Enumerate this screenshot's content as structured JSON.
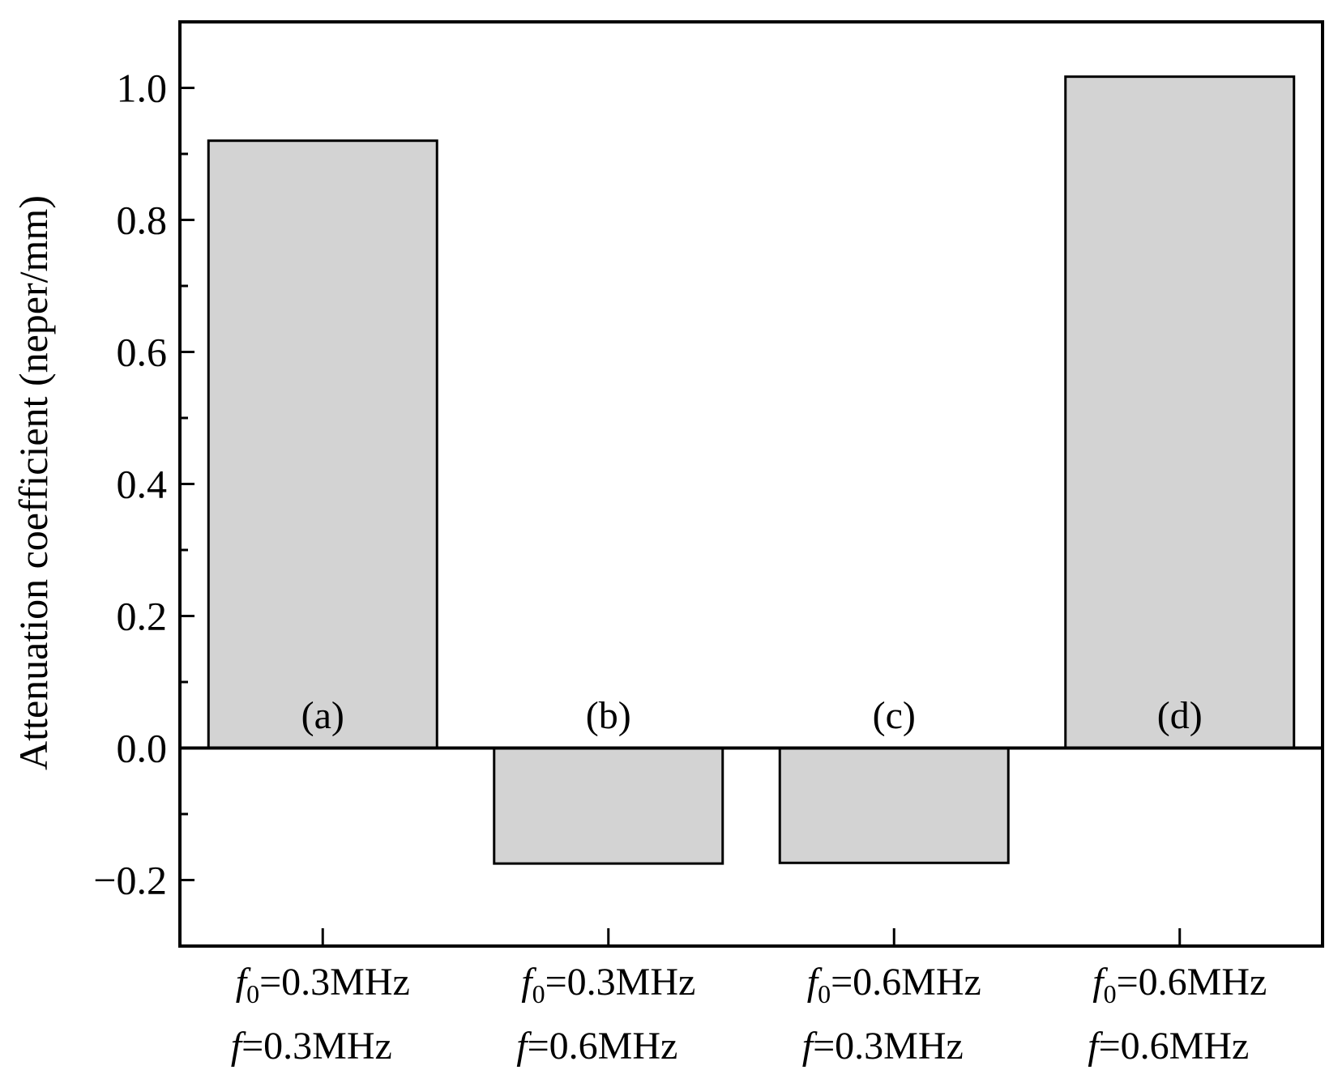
{
  "chart_data": {
    "type": "bar",
    "title": "",
    "xlabel": "",
    "ylabel": "Attenuation coefficient (neper/mm)",
    "ylim": [
      -0.3,
      1.1
    ],
    "yticks": [
      -0.2,
      0.0,
      0.2,
      0.4,
      0.6,
      0.8,
      1.0
    ],
    "ytick_labels": [
      "−0.2",
      "0.0",
      "0.2",
      "0.4",
      "0.6",
      "0.8",
      "1.0"
    ],
    "grid": false,
    "zero_line": true,
    "bar_color": "#d3d3d3",
    "categories": [
      {
        "id": "(a)",
        "f0_var": "f",
        "f0_sub": "0",
        "f0_value": "=0.3MHz",
        "f_var": "f",
        "f_value": "=0.3MHz"
      },
      {
        "id": "(b)",
        "f0_var": "f",
        "f0_sub": "0",
        "f0_value": "=0.3MHz",
        "f_var": "f",
        "f_value": "=0.6MHz"
      },
      {
        "id": "(c)",
        "f0_var": "f",
        "f0_sub": "0",
        "f0_value": "=0.6MHz",
        "f_var": "f",
        "f_value": "=0.3MHz"
      },
      {
        "id": "(d)",
        "f0_var": "f",
        "f0_sub": "0",
        "f0_value": "=0.6MHz",
        "f_var": "f",
        "f_value": "=0.6MHz"
      }
    ],
    "values": [
      0.92,
      -0.175,
      -0.174,
      1.017
    ]
  }
}
